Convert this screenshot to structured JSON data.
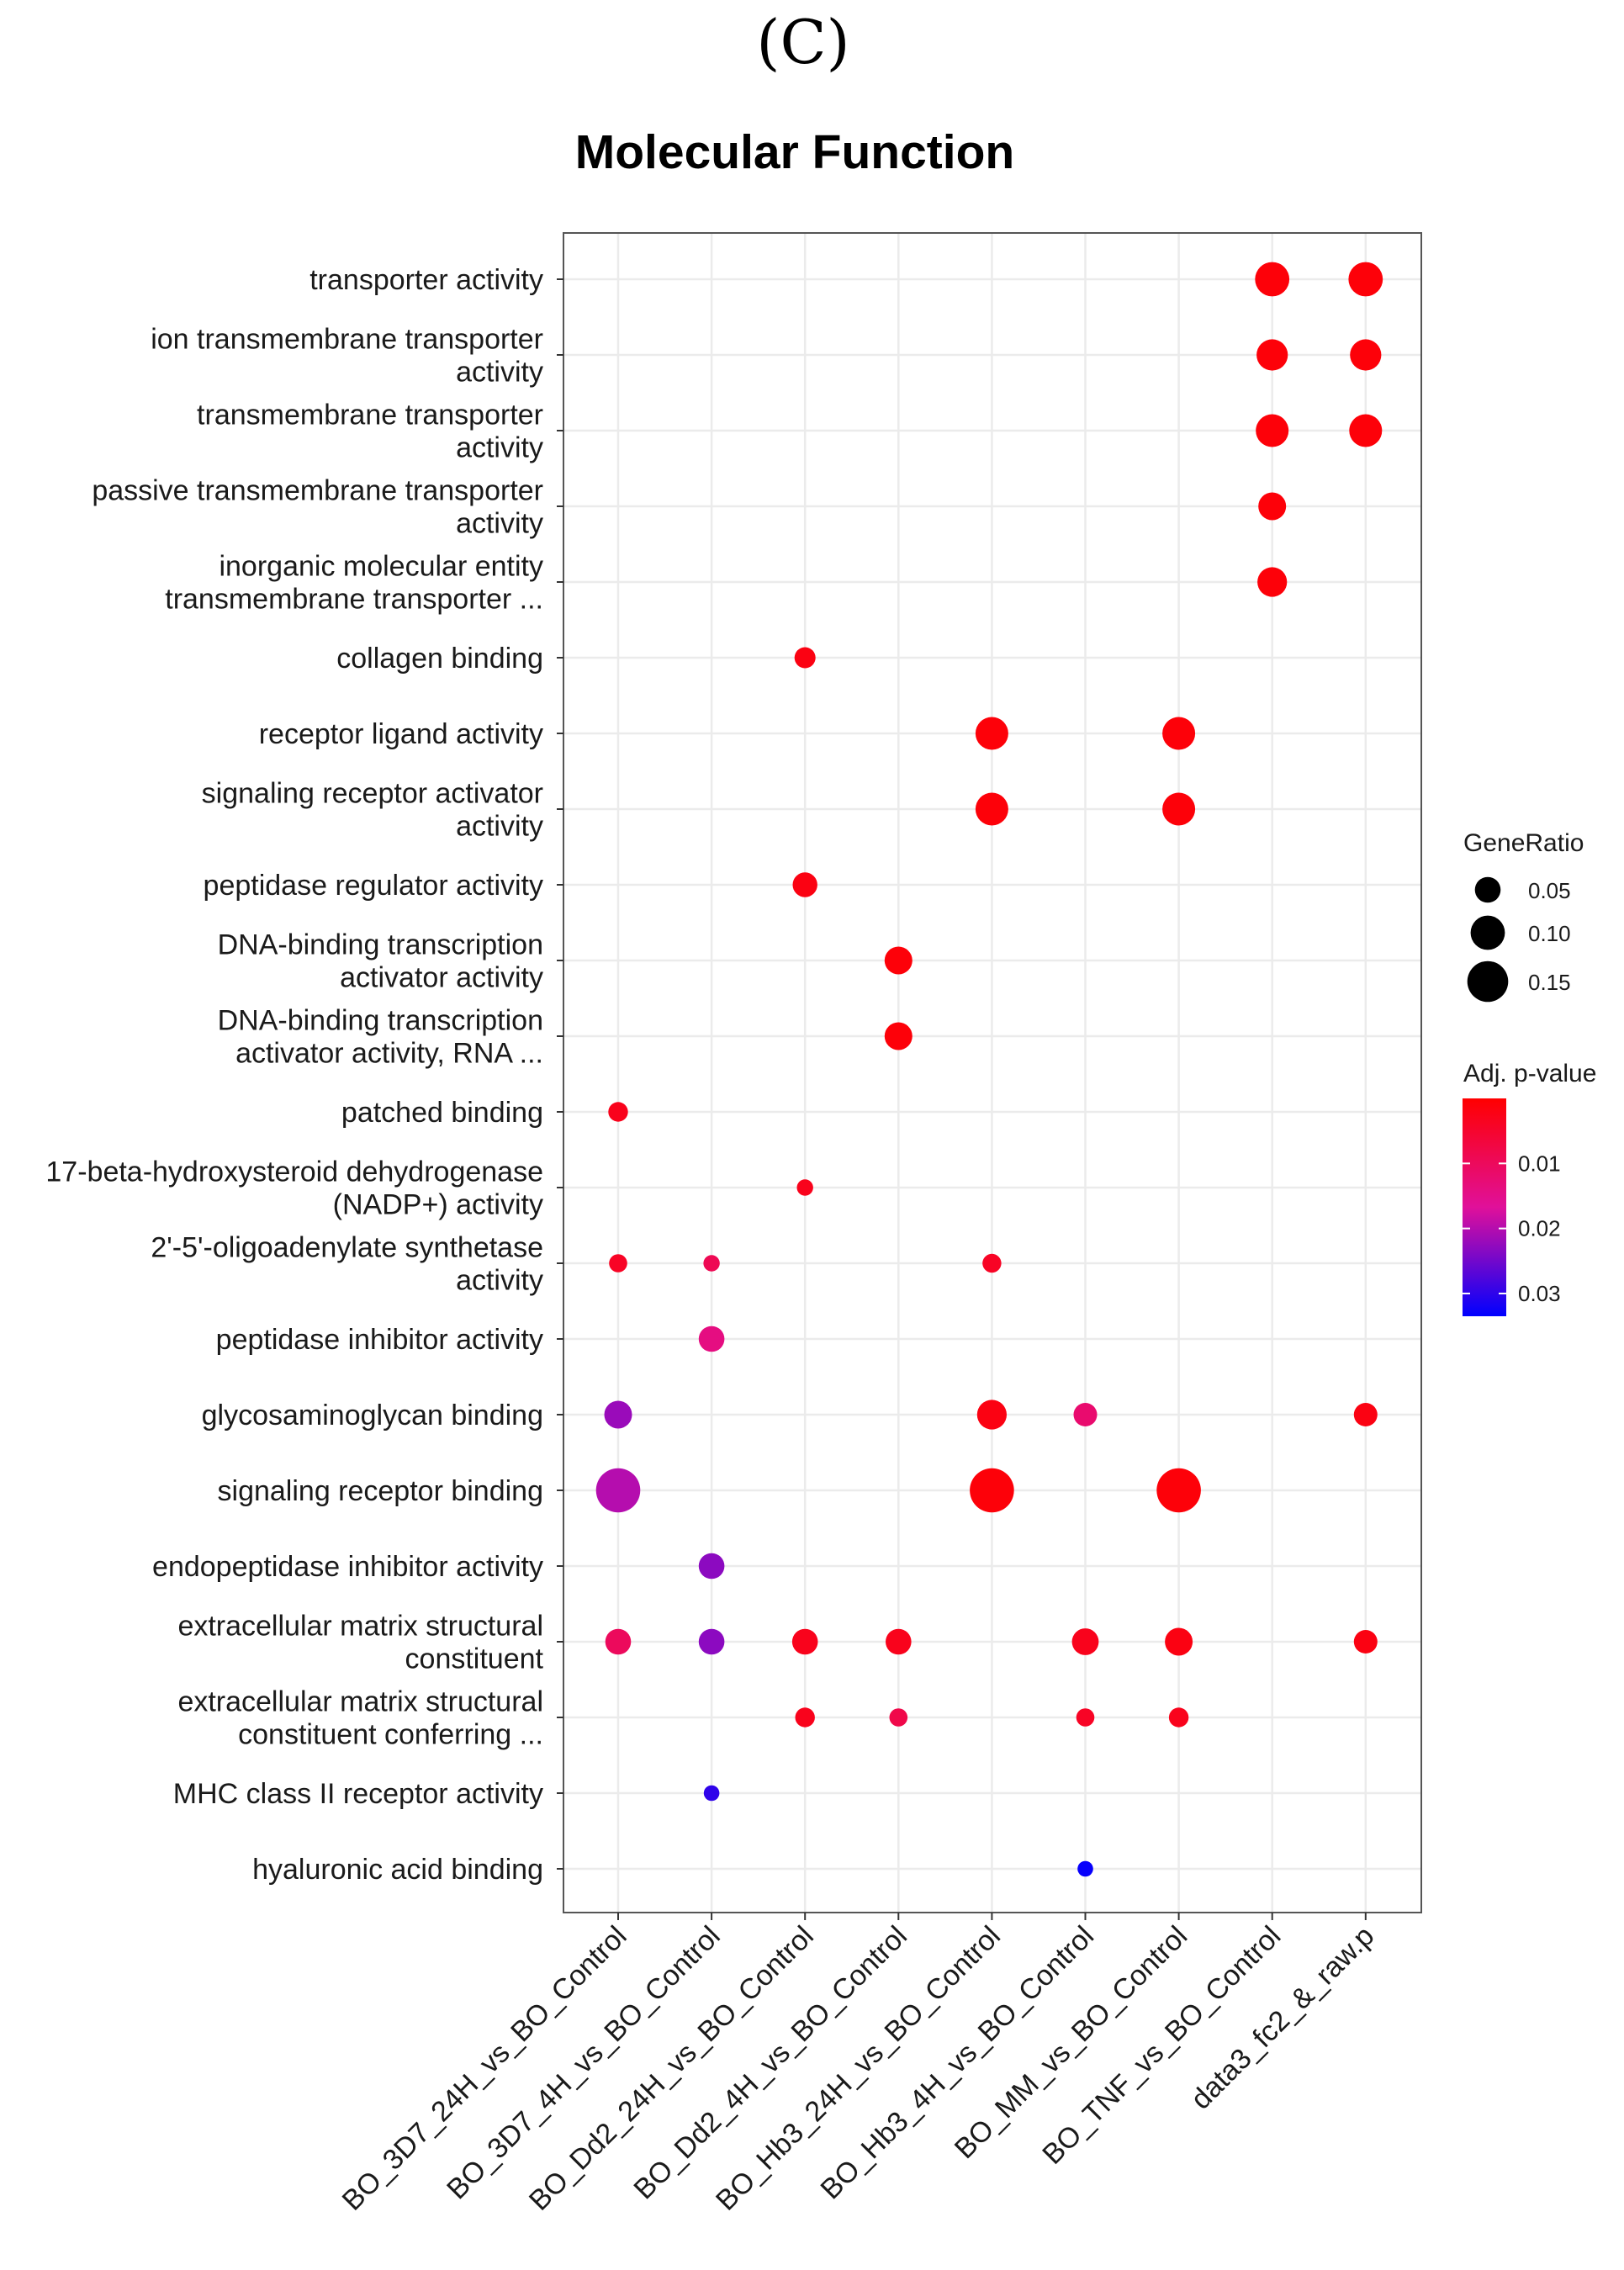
{
  "panel_label": "(C)",
  "chart_data": {
    "type": "scatter",
    "title": "Molecular Function",
    "xlabel": "",
    "ylabel": "",
    "x_categories": [
      "BO_3D7_24H_vs_BO_Control",
      "BO_3D7_4H_vs_BO_Control",
      "BO_Dd2_24H_vs_BO_Control",
      "BO_Dd2_4H_vs_BO_Control",
      "BO_Hb3_24H_vs_BO_Control",
      "BO_Hb3_4H_vs_BO_Control",
      "BO_MM_vs_BO_Control",
      "BO_TNF_vs_BO_Control",
      "data3_fc2_&_raw.p"
    ],
    "y_categories": [
      [
        "transporter activity"
      ],
      [
        "ion transmembrane transporter",
        "activity"
      ],
      [
        "transmembrane transporter",
        "activity"
      ],
      [
        "passive transmembrane transporter",
        "activity"
      ],
      [
        "inorganic molecular entity",
        "transmembrane transporter ..."
      ],
      [
        "collagen binding"
      ],
      [
        "receptor ligand activity"
      ],
      [
        "signaling receptor activator",
        "activity"
      ],
      [
        "peptidase regulator activity"
      ],
      [
        "DNA-binding transcription",
        "activator activity"
      ],
      [
        "DNA-binding transcription",
        "activator activity, RNA ..."
      ],
      [
        "patched binding"
      ],
      [
        "17-beta-hydroxysteroid dehydrogenase",
        "(NADP+) activity"
      ],
      [
        "2'-5'-oligoadenylate synthetase",
        "activity"
      ],
      [
        "peptidase inhibitor activity"
      ],
      [
        "glycosaminoglycan binding"
      ],
      [
        "signaling receptor binding"
      ],
      [
        "endopeptidase inhibitor activity"
      ],
      [
        "extracellular matrix structural",
        "constituent"
      ],
      [
        "extracellular matrix structural",
        "constituent conferring ..."
      ],
      [
        "MHC class II receptor activity"
      ],
      [
        "hyaluronic acid binding"
      ]
    ],
    "points": [
      {
        "x": 7,
        "y": 0,
        "gene_ratio": 0.1,
        "padj": 0.001
      },
      {
        "x": 8,
        "y": 0,
        "gene_ratio": 0.1,
        "padj": 0.001
      },
      {
        "x": 7,
        "y": 1,
        "gene_ratio": 0.08,
        "padj": 0.001
      },
      {
        "x": 8,
        "y": 1,
        "gene_ratio": 0.08,
        "padj": 0.001
      },
      {
        "x": 7,
        "y": 2,
        "gene_ratio": 0.09,
        "padj": 0.001
      },
      {
        "x": 8,
        "y": 2,
        "gene_ratio": 0.09,
        "padj": 0.001
      },
      {
        "x": 7,
        "y": 3,
        "gene_ratio": 0.06,
        "padj": 0.001
      },
      {
        "x": 7,
        "y": 4,
        "gene_ratio": 0.07,
        "padj": 0.001
      },
      {
        "x": 2,
        "y": 5,
        "gene_ratio": 0.03,
        "padj": 0.002
      },
      {
        "x": 4,
        "y": 6,
        "gene_ratio": 0.09,
        "padj": 0.001
      },
      {
        "x": 6,
        "y": 6,
        "gene_ratio": 0.09,
        "padj": 0.001
      },
      {
        "x": 4,
        "y": 7,
        "gene_ratio": 0.09,
        "padj": 0.001
      },
      {
        "x": 6,
        "y": 7,
        "gene_ratio": 0.09,
        "padj": 0.001
      },
      {
        "x": 2,
        "y": 8,
        "gene_ratio": 0.045,
        "padj": 0.002
      },
      {
        "x": 3,
        "y": 9,
        "gene_ratio": 0.06,
        "padj": 0.001
      },
      {
        "x": 3,
        "y": 10,
        "gene_ratio": 0.06,
        "padj": 0.001
      },
      {
        "x": 0,
        "y": 11,
        "gene_ratio": 0.025,
        "padj": 0.003
      },
      {
        "x": 2,
        "y": 12,
        "gene_ratio": 0.015,
        "padj": 0.003
      },
      {
        "x": 0,
        "y": 13,
        "gene_ratio": 0.02,
        "padj": 0.004
      },
      {
        "x": 1,
        "y": 13,
        "gene_ratio": 0.015,
        "padj": 0.009
      },
      {
        "x": 4,
        "y": 13,
        "gene_ratio": 0.022,
        "padj": 0.004
      },
      {
        "x": 1,
        "y": 14,
        "gene_ratio": 0.05,
        "padj": 0.014
      },
      {
        "x": 0,
        "y": 15,
        "gene_ratio": 0.06,
        "padj": 0.022
      },
      {
        "x": 4,
        "y": 15,
        "gene_ratio": 0.07,
        "padj": 0.002
      },
      {
        "x": 5,
        "y": 15,
        "gene_ratio": 0.04,
        "padj": 0.012
      },
      {
        "x": 8,
        "y": 15,
        "gene_ratio": 0.04,
        "padj": 0.002
      },
      {
        "x": 0,
        "y": 16,
        "gene_ratio": 0.18,
        "padj": 0.02
      },
      {
        "x": 4,
        "y": 16,
        "gene_ratio": 0.18,
        "padj": 0.001
      },
      {
        "x": 6,
        "y": 16,
        "gene_ratio": 0.18,
        "padj": 0.001
      },
      {
        "x": 1,
        "y": 17,
        "gene_ratio": 0.05,
        "padj": 0.023
      },
      {
        "x": 0,
        "y": 18,
        "gene_ratio": 0.05,
        "padj": 0.01
      },
      {
        "x": 1,
        "y": 18,
        "gene_ratio": 0.05,
        "padj": 0.023
      },
      {
        "x": 2,
        "y": 18,
        "gene_ratio": 0.05,
        "padj": 0.003
      },
      {
        "x": 3,
        "y": 18,
        "gene_ratio": 0.05,
        "padj": 0.003
      },
      {
        "x": 5,
        "y": 18,
        "gene_ratio": 0.055,
        "padj": 0.003
      },
      {
        "x": 6,
        "y": 18,
        "gene_ratio": 0.06,
        "padj": 0.002
      },
      {
        "x": 8,
        "y": 18,
        "gene_ratio": 0.04,
        "padj": 0.002
      },
      {
        "x": 2,
        "y": 19,
        "gene_ratio": 0.025,
        "padj": 0.003
      },
      {
        "x": 3,
        "y": 19,
        "gene_ratio": 0.02,
        "padj": 0.008
      },
      {
        "x": 5,
        "y": 19,
        "gene_ratio": 0.02,
        "padj": 0.004
      },
      {
        "x": 6,
        "y": 19,
        "gene_ratio": 0.025,
        "padj": 0.003
      },
      {
        "x": 1,
        "y": 20,
        "gene_ratio": 0.013,
        "padj": 0.03
      },
      {
        "x": 5,
        "y": 21,
        "gene_ratio": 0.013,
        "padj": 0.033
      }
    ],
    "size_legend": {
      "title": "GeneRatio",
      "values": [
        0.05,
        0.1,
        0.15
      ],
      "labels": [
        "0.05",
        "0.10",
        "0.15"
      ]
    },
    "color_legend": {
      "title": "Adj. p-value",
      "domain": [
        0.0,
        0.0335
      ],
      "ticks": [
        0.01,
        0.02,
        0.03
      ],
      "tick_labels": [
        "0.01",
        "0.02",
        "0.03"
      ],
      "low_color": "#ff0000",
      "mid_color": "#e0109a",
      "high_color": "#0000ff"
    },
    "grid": true
  }
}
